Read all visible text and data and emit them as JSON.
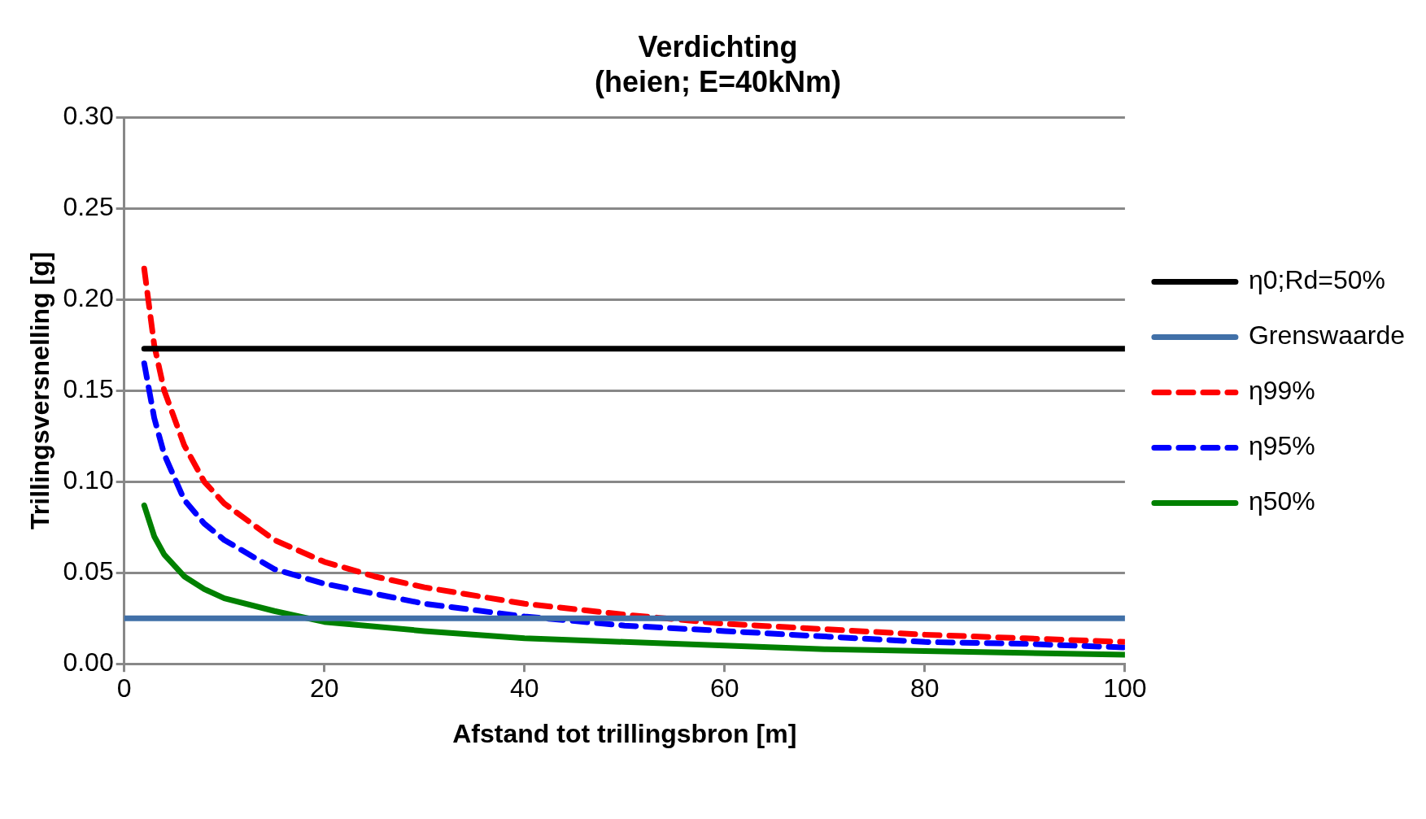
{
  "chart_data": {
    "type": "line",
    "title": [
      "Verdichting",
      "(heien; E=40kNm)"
    ],
    "xlabel": "Afstand tot trillingsbron [m]",
    "ylabel": "Trillingsversnelling [g]",
    "xlim": [
      0,
      100
    ],
    "xticks": [
      0,
      20,
      40,
      60,
      80,
      100
    ],
    "ylim": [
      0,
      0.3
    ],
    "yticks": [
      {
        "value": 0,
        "label": "0.00"
      },
      0.05,
      {
        "value": 0.1,
        "label": "0.10"
      },
      0.15,
      {
        "value": 0.2,
        "label": "0.20"
      },
      0.25,
      {
        "value": 0.3,
        "label": "0.30"
      }
    ],
    "grid": "y",
    "legend": "right",
    "marker": "none",
    "series": [
      {
        "name": "η0;Rd=50%",
        "color": "#000000",
        "line_style": "solid",
        "x": [
          2,
          100
        ],
        "values": [
          0.173,
          0.173
        ]
      },
      {
        "name": "Grenswaarde",
        "color": "#4170a8",
        "line_style": "solid",
        "x": [
          0,
          100
        ],
        "values": [
          0.025,
          0.025
        ]
      },
      {
        "name": "η99%",
        "color": "#ff0000",
        "line_style": "dashed",
        "x": [
          2,
          3,
          4,
          6,
          8,
          10,
          15,
          20,
          25,
          30,
          40,
          50,
          60,
          70,
          80,
          90,
          100
        ],
        "values": [
          0.217,
          0.175,
          0.15,
          0.12,
          0.1,
          0.088,
          0.068,
          0.056,
          0.048,
          0.042,
          0.033,
          0.027,
          0.022,
          0.019,
          0.016,
          0.014,
          0.012
        ]
      },
      {
        "name": "η95%",
        "color": "#0000ff",
        "line_style": "dashed",
        "x": [
          2,
          3,
          4,
          6,
          8,
          10,
          15,
          20,
          30,
          40,
          50,
          60,
          70,
          80,
          90,
          100
        ],
        "values": [
          0.165,
          0.135,
          0.115,
          0.09,
          0.077,
          0.068,
          0.052,
          0.044,
          0.033,
          0.026,
          0.021,
          0.018,
          0.015,
          0.012,
          0.011,
          0.009
        ]
      },
      {
        "name": "η50%",
        "color": "#008000",
        "line_style": "solid",
        "x": [
          2,
          3,
          4,
          6,
          8,
          10,
          15,
          20,
          30,
          40,
          50,
          60,
          70,
          80,
          90,
          100
        ],
        "values": [
          0.087,
          0.07,
          0.06,
          0.048,
          0.041,
          0.036,
          0.029,
          0.023,
          0.018,
          0.014,
          0.012,
          0.01,
          0.008,
          0.007,
          0.006,
          0.005
        ]
      }
    ]
  }
}
